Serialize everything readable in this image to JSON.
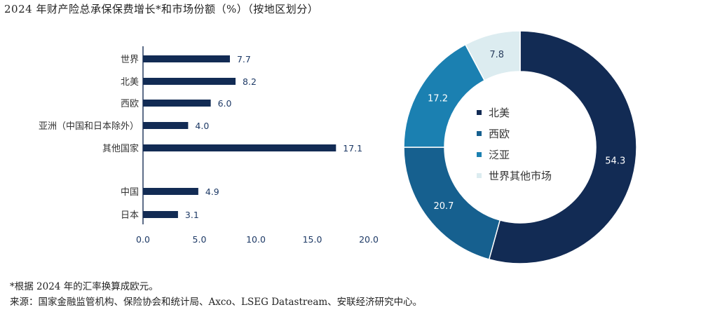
{
  "title": "2024 年财产险总承保保费增长*和市场份额（%）（按地区划分）",
  "footnote": {
    "line1": "*根据 2024 年的汇率换算成欧元。",
    "line2": "来源：国家金融监管机构、保险协会和统计局、Axco、LSEG Datastream、安联经济研究中心。"
  },
  "colors": {
    "navy": "#122b54",
    "blue": "#16608f",
    "mid_blue": "#1b80b1",
    "pale": "#dcecf0",
    "axis_text": "#1e3a66"
  },
  "chart_data": [
    {
      "type": "bar",
      "orientation": "horizontal",
      "categories": [
        "世界",
        "北美",
        "西欧",
        "亚洲（中国和日本除外）",
        "其他国家",
        "中国",
        "日本"
      ],
      "values": [
        7.7,
        8.2,
        6.0,
        4.0,
        17.1,
        4.9,
        3.1
      ],
      "value_labels": [
        "7.7",
        "8.2",
        "6.0",
        "4.0",
        "17.1",
        "4.9",
        "3.1"
      ],
      "xlim": [
        0,
        20
      ],
      "xticks": [
        "0.0",
        "5.0",
        "10.0",
        "15.0",
        "20.0"
      ],
      "grid": false
    },
    {
      "type": "pie",
      "style": "donut",
      "labels": [
        "北美",
        "西欧",
        "泛亚",
        "世界其他市场"
      ],
      "values": [
        54.3,
        20.7,
        17.2,
        7.8
      ],
      "value_labels": [
        "54.3",
        "20.7",
        "17.2",
        "7.8"
      ],
      "colors": [
        "#122b54",
        "#16608f",
        "#1b80b1",
        "#dcecf0"
      ],
      "legend": "center"
    }
  ]
}
